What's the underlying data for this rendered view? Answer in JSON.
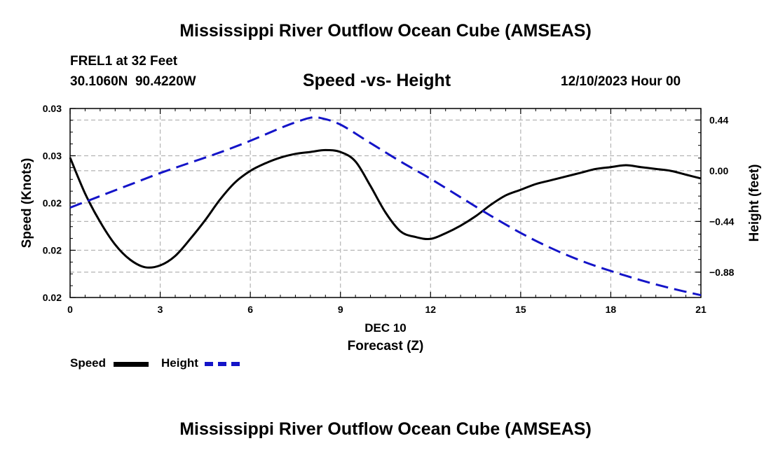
{
  "header": {
    "title": "Mississippi River Outflow Ocean Cube (AMSEAS)",
    "station": "FREL1 at 32 Feet",
    "coords": "30.1060N  90.4220W",
    "subtitle": "Speed -vs- Height",
    "datetime": "12/10/2023 Hour 00"
  },
  "legend": {
    "speed_label": "Speed",
    "height_label": "Height"
  },
  "footer": {
    "title": "Mississippi River Outflow Ocean Cube (AMSEAS)"
  },
  "colors": {
    "speed": "#000000",
    "height": "#1414c8",
    "grid": "#b4b4b4"
  },
  "chart_data": {
    "type": "line",
    "title": "Speed -vs- Height",
    "xlabel": "Forecast (Z)",
    "xlabel_date": "DEC 10",
    "ylabel_left": "Speed (Knots)",
    "ylabel_right": "Height (feet)",
    "xlim": [
      0,
      21
    ],
    "x_ticks": [
      0,
      3,
      6,
      9,
      12,
      15,
      18,
      21
    ],
    "x_tick_labels": [
      "0",
      "3",
      "6",
      "9",
      "12",
      "15",
      "18",
      "21"
    ],
    "left_ylim": [
      0.02,
      0.03
    ],
    "left_y_ticks": [
      0.02,
      0.0225,
      0.025,
      0.0275,
      0.03
    ],
    "left_y_tick_labels": [
      "0.02",
      "0.02",
      "0.02",
      "0.03",
      "0.03"
    ],
    "right_ylim": [
      -1.1,
      0.54
    ],
    "right_y_ticks": [
      0.44,
      0.0,
      -0.44,
      -0.88
    ],
    "right_y_tick_labels": [
      "0.44",
      "0.00",
      "−0.44",
      "−0.88"
    ],
    "grid": true,
    "series": [
      {
        "name": "Speed",
        "axis": "left",
        "style": "solid",
        "x": [
          0,
          0.5,
          1,
          1.5,
          2,
          2.5,
          3,
          3.5,
          4,
          4.5,
          5,
          5.5,
          6,
          6.5,
          7,
          7.5,
          8,
          8.5,
          9,
          9.5,
          10,
          10.5,
          11,
          11.5,
          12,
          12.5,
          13,
          13.5,
          14,
          14.5,
          15,
          15.5,
          16,
          16.5,
          17,
          17.5,
          18,
          18.5,
          19,
          19.5,
          20,
          20.5,
          21
        ],
        "values": [
          0.0274,
          0.0255,
          0.024,
          0.0228,
          0.022,
          0.0216,
          0.0217,
          0.0222,
          0.0231,
          0.0241,
          0.0252,
          0.0261,
          0.0267,
          0.0271,
          0.0274,
          0.0276,
          0.0277,
          0.0278,
          0.0277,
          0.0272,
          0.0259,
          0.0245,
          0.0235,
          0.0232,
          0.0231,
          0.0234,
          0.0238,
          0.0243,
          0.0249,
          0.0254,
          0.0257,
          0.026,
          0.0262,
          0.0264,
          0.0266,
          0.0268,
          0.0269,
          0.027,
          0.0269,
          0.0268,
          0.0267,
          0.0265,
          0.0263
        ]
      },
      {
        "name": "Height",
        "axis": "right",
        "style": "dashed",
        "x": [
          0,
          1,
          2,
          3,
          4,
          5,
          6,
          7,
          7.5,
          8,
          8.3,
          9,
          10,
          11,
          12,
          13,
          14,
          15,
          16,
          17,
          18,
          19,
          20,
          21
        ],
        "values": [
          -0.32,
          -0.22,
          -0.12,
          -0.02,
          0.07,
          0.16,
          0.26,
          0.37,
          0.42,
          0.46,
          0.46,
          0.4,
          0.24,
          0.08,
          -0.07,
          -0.23,
          -0.39,
          -0.54,
          -0.67,
          -0.78,
          -0.87,
          -0.95,
          -1.02,
          -1.08
        ]
      }
    ]
  }
}
